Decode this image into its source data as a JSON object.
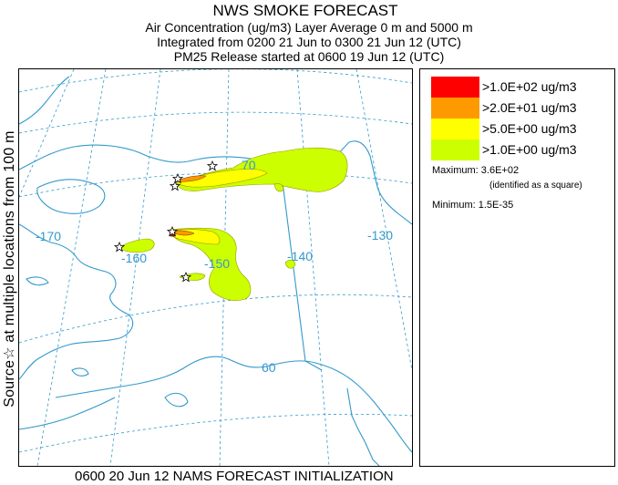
{
  "header": {
    "title": "NWS SMOKE FORECAST",
    "line2": "Air Concentration (ug/m3) Layer Average    0 m and  5000 m",
    "line3": "Integrated from 0200 21 Jun to 0300 21 Jun 12 (UTC)",
    "line4": "PM25 Release started at 0600 19 Jun 12 (UTC)"
  },
  "side_label": "Source☆ at multiple locations   from   100 m",
  "footer": "0600 20 Jun 12 NAMS FORECAST INITIALIZATION",
  "legend": {
    "items": [
      {
        "label": ">1.0E+02 ug/m3",
        "color": "#ff0000"
      },
      {
        "label": ">2.0E+01 ug/m3",
        "color": "#ff9900"
      },
      {
        "label": ">5.0E+00 ug/m3",
        "color": "#ffff00"
      },
      {
        "label": ">1.0E+00 ug/m3",
        "color": "#ccff00"
      }
    ],
    "maximum": "Maximum: 3.6E+02",
    "maximum_note": "(identified as a square)",
    "minimum": "Minimum: 1.5E-35"
  },
  "map": {
    "lon_labels": [
      "-170",
      "-160",
      "-150",
      "-140",
      "-130"
    ],
    "lat_labels": [
      "70",
      "60"
    ],
    "colors": {
      "coast": "#3399cc",
      "grid": "#3399cc",
      "border": "#3399cc"
    }
  }
}
